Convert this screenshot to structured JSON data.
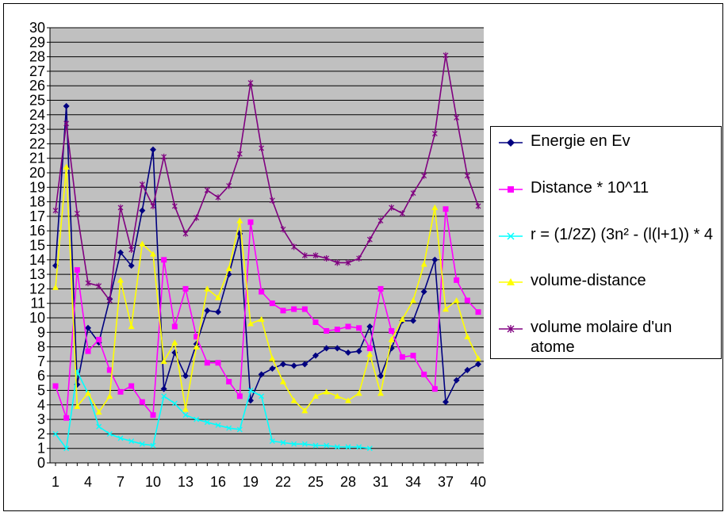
{
  "chart_data": {
    "type": "line",
    "title": "",
    "xlabel": "",
    "ylabel": "",
    "ylim": [
      0,
      30
    ],
    "xlim": [
      1,
      40
    ],
    "grid": true,
    "legend_position": "right",
    "yticks": [
      "0",
      "1",
      "2",
      "3",
      "4",
      "5",
      "6",
      "7",
      "8",
      "9",
      "10",
      "11",
      "12",
      "13",
      "14",
      "15",
      "16",
      "17",
      "18",
      "19",
      "20",
      "21",
      "22",
      "23",
      "24",
      "25",
      "26",
      "27",
      "28",
      "29",
      "30"
    ],
    "xticks": [
      "1",
      "4",
      "7",
      "10",
      "13",
      "16",
      "19",
      "22",
      "25",
      "28",
      "31",
      "34",
      "37",
      "40"
    ],
    "series": [
      {
        "name": "Energie en Ev",
        "color": "#000080",
        "marker": "diamond",
        "x": [
          1,
          2,
          3,
          4,
          5,
          6,
          7,
          8,
          9,
          10,
          11,
          12,
          13,
          14,
          15,
          16,
          17,
          18,
          19,
          20,
          21,
          22,
          23,
          24,
          25,
          26,
          27,
          28,
          29,
          30,
          31,
          32,
          33,
          34,
          35,
          36,
          37,
          38,
          39,
          40
        ],
        "values": [
          13.6,
          24.6,
          5.4,
          9.3,
          8.3,
          11.3,
          14.5,
          13.6,
          17.4,
          21.6,
          5.1,
          7.6,
          6.0,
          8.2,
          10.5,
          10.4,
          13.0,
          15.8,
          4.3,
          6.1,
          6.5,
          6.8,
          6.7,
          6.8,
          7.4,
          7.9,
          7.9,
          7.6,
          7.7,
          9.4,
          6.0,
          7.9,
          9.8,
          9.8,
          11.8,
          14.0,
          4.2,
          5.7,
          6.4,
          6.8
        ]
      },
      {
        "name": "Distance * 10^11",
        "color": "#ff00ff",
        "marker": "square",
        "x": [
          1,
          2,
          3,
          4,
          5,
          6,
          7,
          8,
          9,
          10,
          11,
          12,
          13,
          14,
          15,
          16,
          17,
          18,
          19,
          20,
          21,
          22,
          23,
          24,
          25,
          26,
          27,
          28,
          29,
          30,
          31,
          32,
          33,
          34,
          35,
          36,
          37,
          38,
          39,
          40
        ],
        "values": [
          5.3,
          3.1,
          13.3,
          7.7,
          8.5,
          6.4,
          4.9,
          5.3,
          4.2,
          3.3,
          14.0,
          9.4,
          12.0,
          8.7,
          6.9,
          6.9,
          5.6,
          4.6,
          16.6,
          11.8,
          11.0,
          10.5,
          10.6,
          10.6,
          9.7,
          9.1,
          9.2,
          9.4,
          9.3,
          7.9,
          12.0,
          9.1,
          7.3,
          7.4,
          6.1,
          5.1,
          17.5,
          12.6,
          11.2,
          10.4
        ]
      },
      {
        "name": "r = (1/2Z) (3n² - (l(l+1)) * 4",
        "color": "#00ffff",
        "marker": "x",
        "x": [
          1,
          2,
          3,
          4,
          5,
          6,
          7,
          8,
          9,
          10,
          11,
          12,
          13,
          14,
          15,
          16,
          17,
          18,
          19,
          20,
          21,
          22,
          23,
          24,
          25,
          26,
          27,
          28,
          29,
          30
        ],
        "values": [
          2.0,
          1.0,
          6.3,
          4.8,
          2.5,
          2.0,
          1.7,
          1.5,
          1.3,
          1.2,
          4.6,
          4.1,
          3.3,
          3.0,
          2.8,
          2.6,
          2.4,
          2.3,
          5.0,
          4.6,
          1.5,
          1.4,
          1.3,
          1.3,
          1.2,
          1.2,
          1.1,
          1.1,
          1.1,
          1.0
        ]
      },
      {
        "name": "volume-distance",
        "color": "#ffff00",
        "marker": "triangle",
        "x": [
          1,
          2,
          3,
          4,
          5,
          6,
          7,
          8,
          9,
          10,
          11,
          12,
          13,
          14,
          15,
          16,
          17,
          18,
          19,
          20,
          21,
          22,
          23,
          24,
          25,
          26,
          27,
          28,
          29,
          30,
          31,
          32,
          33,
          34,
          35,
          36,
          37,
          38,
          39,
          40
        ],
        "values": [
          12.1,
          20.4,
          3.9,
          4.8,
          3.5,
          4.6,
          12.6,
          9.4,
          15.1,
          14.4,
          7.0,
          8.3,
          3.7,
          8.0,
          12.0,
          11.4,
          13.4,
          16.7,
          9.6,
          9.9,
          7.2,
          5.6,
          4.3,
          3.6,
          4.6,
          4.9,
          4.6,
          4.3,
          4.8,
          7.5,
          4.8,
          8.5,
          9.9,
          11.2,
          13.7,
          17.6,
          10.6,
          11.2,
          8.7,
          7.2
        ]
      },
      {
        "name": "volume molaire d'un atome",
        "color": "#800080",
        "marker": "star",
        "x": [
          1,
          2,
          3,
          4,
          5,
          6,
          7,
          8,
          9,
          10,
          11,
          12,
          13,
          14,
          15,
          16,
          17,
          18,
          19,
          20,
          21,
          22,
          23,
          24,
          25,
          26,
          27,
          28,
          29,
          30,
          31,
          32,
          33,
          34,
          35,
          36,
          37,
          38,
          39,
          40
        ],
        "values": [
          17.4,
          23.4,
          17.2,
          12.4,
          12.2,
          11.2,
          17.6,
          14.7,
          19.2,
          17.7,
          21.1,
          17.7,
          15.8,
          16.9,
          18.8,
          18.3,
          19.1,
          21.3,
          26.2,
          21.7,
          18.1,
          16.1,
          14.9,
          14.3,
          14.3,
          14.1,
          13.8,
          13.8,
          14.1,
          15.4,
          16.7,
          17.6,
          17.2,
          18.6,
          19.8,
          22.7,
          28.1,
          23.8,
          19.8,
          17.7
        ]
      }
    ]
  }
}
